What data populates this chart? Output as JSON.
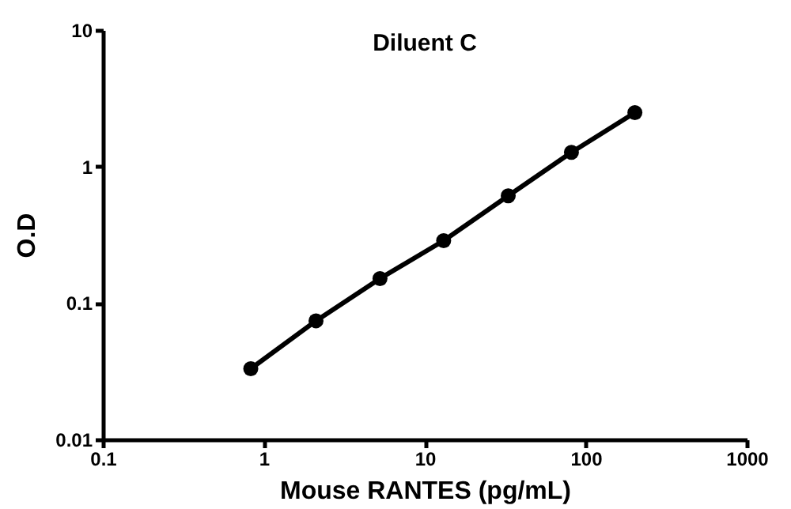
{
  "chart_data": {
    "type": "line",
    "title": "Diluent C",
    "xlabel": "Mouse RANTES (pg/mL)",
    "ylabel": "O.D",
    "x": [
      0.83,
      2.11,
      5.27,
      13.1,
      33,
      81.5,
      202
    ],
    "series": [
      {
        "color": "#000000",
        "values": [
          0.033,
          0.074,
          0.151,
          0.286,
          0.61,
          1.27,
          2.48
        ]
      }
    ],
    "log": "xy",
    "xlim": [
      0.1,
      1000
    ],
    "ylim": [
      0.01,
      10
    ],
    "xticks": [
      0.1,
      1,
      10,
      100,
      1000
    ],
    "yticks": [
      0.01,
      0.1,
      1,
      10
    ],
    "grid": false,
    "legend": false,
    "marker": "circle",
    "line_style": "solid"
  }
}
